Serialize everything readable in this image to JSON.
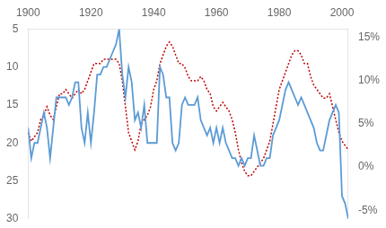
{
  "chart_data": {
    "type": "line",
    "grid": false,
    "x": [
      1900,
      1901,
      1902,
      1903,
      1904,
      1905,
      1906,
      1907,
      1908,
      1909,
      1910,
      1911,
      1912,
      1913,
      1914,
      1915,
      1916,
      1917,
      1918,
      1919,
      1920,
      1921,
      1922,
      1923,
      1924,
      1925,
      1926,
      1927,
      1928,
      1929,
      1930,
      1931,
      1932,
      1933,
      1934,
      1935,
      1936,
      1937,
      1938,
      1939,
      1940,
      1941,
      1942,
      1943,
      1944,
      1945,
      1946,
      1947,
      1948,
      1949,
      1950,
      1951,
      1952,
      1953,
      1954,
      1955,
      1956,
      1957,
      1958,
      1959,
      1960,
      1961,
      1962,
      1963,
      1964,
      1965,
      1966,
      1967,
      1968,
      1969,
      1970,
      1971,
      1972,
      1973,
      1974,
      1975,
      1976,
      1977,
      1978,
      1979,
      1980,
      1981,
      1982,
      1983,
      1984,
      1985,
      1986,
      1987,
      1988,
      1989,
      1990,
      1991,
      1992,
      1993,
      1994,
      1995,
      1996,
      1997,
      1998,
      1999,
      2000,
      2001,
      2002
    ],
    "xlim": [
      1900,
      2002
    ],
    "xticks": [
      1900,
      1920,
      1940,
      1960,
      1980,
      2000
    ],
    "ylim": [
      30,
      5
    ],
    "yticks": [
      5,
      10,
      15,
      20,
      25,
      30
    ],
    "y2lim": [
      -0.06,
      0.16
    ],
    "y2ticks": [
      {
        "value": -0.05,
        "label": "-5%"
      },
      {
        "value": 0.0,
        "label": "0%"
      },
      {
        "value": 0.05,
        "label": "5%"
      },
      {
        "value": 0.1,
        "label": "10%"
      },
      {
        "value": 0.15,
        "label": "15%"
      }
    ],
    "series": [
      {
        "color": "#5B9BD5",
        "line_style": "solid",
        "values": [
          18,
          22,
          20,
          20,
          18,
          16,
          18,
          22,
          18,
          14,
          14,
          14,
          14,
          15,
          14,
          12,
          12,
          18,
          20,
          16,
          20,
          16,
          11,
          11,
          10,
          10,
          9,
          8,
          7,
          5,
          11,
          14,
          10,
          12,
          17,
          16,
          18,
          15,
          20,
          20,
          20,
          20,
          10,
          11,
          14,
          14,
          20,
          21,
          20,
          15,
          14,
          15,
          15,
          15,
          14,
          17,
          18,
          19,
          18,
          20,
          18,
          20,
          18,
          20,
          21,
          22,
          22,
          23,
          22,
          23,
          22,
          22,
          19,
          21,
          23,
          23,
          22,
          22,
          19,
          18,
          17,
          15,
          13,
          12,
          13,
          14,
          15,
          14,
          15,
          16,
          17,
          18,
          20,
          21,
          21,
          19,
          17,
          16,
          15,
          16,
          27,
          28,
          30
        ]
      },
      {
        "color": "#C00000",
        "line_style": "dotted",
        "axis": "y2",
        "values": [
          0.04,
          0.03,
          0.035,
          0.04,
          0.055,
          0.06,
          0.07,
          0.06,
          0.055,
          0.07,
          0.085,
          0.085,
          0.09,
          0.085,
          0.08,
          0.085,
          0.09,
          0.085,
          0.09,
          0.1,
          0.11,
          0.12,
          0.12,
          0.12,
          0.125,
          0.125,
          0.125,
          0.125,
          0.125,
          0.12,
          0.1,
          0.07,
          0.04,
          0.03,
          0.02,
          0.03,
          0.05,
          0.055,
          0.06,
          0.07,
          0.09,
          0.1,
          0.12,
          0.13,
          0.14,
          0.145,
          0.14,
          0.13,
          0.12,
          0.12,
          0.115,
          0.105,
          0.1,
          0.1,
          0.1,
          0.105,
          0.1,
          0.09,
          0.085,
          0.07,
          0.065,
          0.07,
          0.075,
          0.07,
          0.065,
          0.055,
          0.04,
          0.02,
          0.005,
          -0.005,
          -0.01,
          -0.01,
          -0.005,
          0.0,
          0.005,
          0.01,
          0.02,
          0.03,
          0.05,
          0.07,
          0.09,
          0.1,
          0.11,
          0.12,
          0.13,
          0.135,
          0.135,
          0.13,
          0.12,
          0.12,
          0.105,
          0.095,
          0.09,
          0.085,
          0.08,
          0.08,
          0.085,
          0.07,
          0.055,
          0.04,
          0.03,
          0.025,
          0.02
        ]
      }
    ]
  }
}
